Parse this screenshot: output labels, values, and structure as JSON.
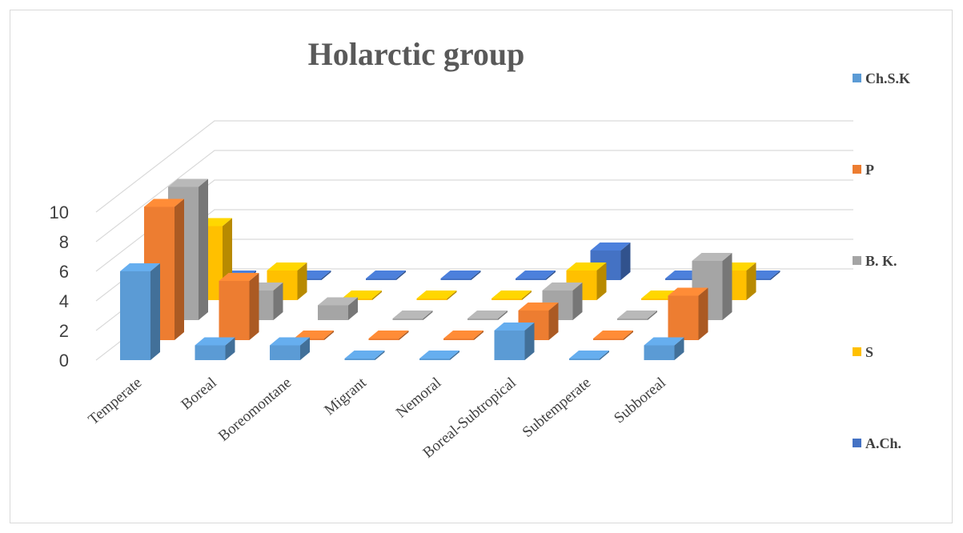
{
  "chart_data": {
    "type": "bar",
    "title": "Holarctic group",
    "categories": [
      "Temperate",
      "Boreal",
      "Boreomontane",
      "Migrant",
      "Nemoral",
      "Boreal-Subtropical",
      "Subtemperate",
      "Subboreal"
    ],
    "series": [
      {
        "name": "Ch.S.K",
        "values": [
          6,
          1,
          1,
          0,
          0,
          2,
          0,
          1
        ]
      },
      {
        "name": "P",
        "values": [
          9,
          4,
          0,
          0,
          0,
          2,
          0,
          3
        ]
      },
      {
        "name": "B. K.",
        "values": [
          9,
          2,
          1,
          0,
          0,
          2,
          0,
          4
        ]
      },
      {
        "name": "S",
        "values": [
          5,
          2,
          0,
          0,
          0,
          2,
          0,
          2
        ]
      },
      {
        "name": "A.Ch.",
        "values": [
          0,
          0,
          0,
          0,
          0,
          2,
          0,
          0
        ]
      }
    ],
    "y_ticks": [
      "0",
      "2",
      "4",
      "6",
      "8",
      "10"
    ],
    "ylim": [
      0,
      10
    ],
    "legend_position": "right",
    "grid": true,
    "colors": [
      "#5b9bd5",
      "#ed7d31",
      "#a5a5a5",
      "#ffc000",
      "#4472c4"
    ]
  }
}
